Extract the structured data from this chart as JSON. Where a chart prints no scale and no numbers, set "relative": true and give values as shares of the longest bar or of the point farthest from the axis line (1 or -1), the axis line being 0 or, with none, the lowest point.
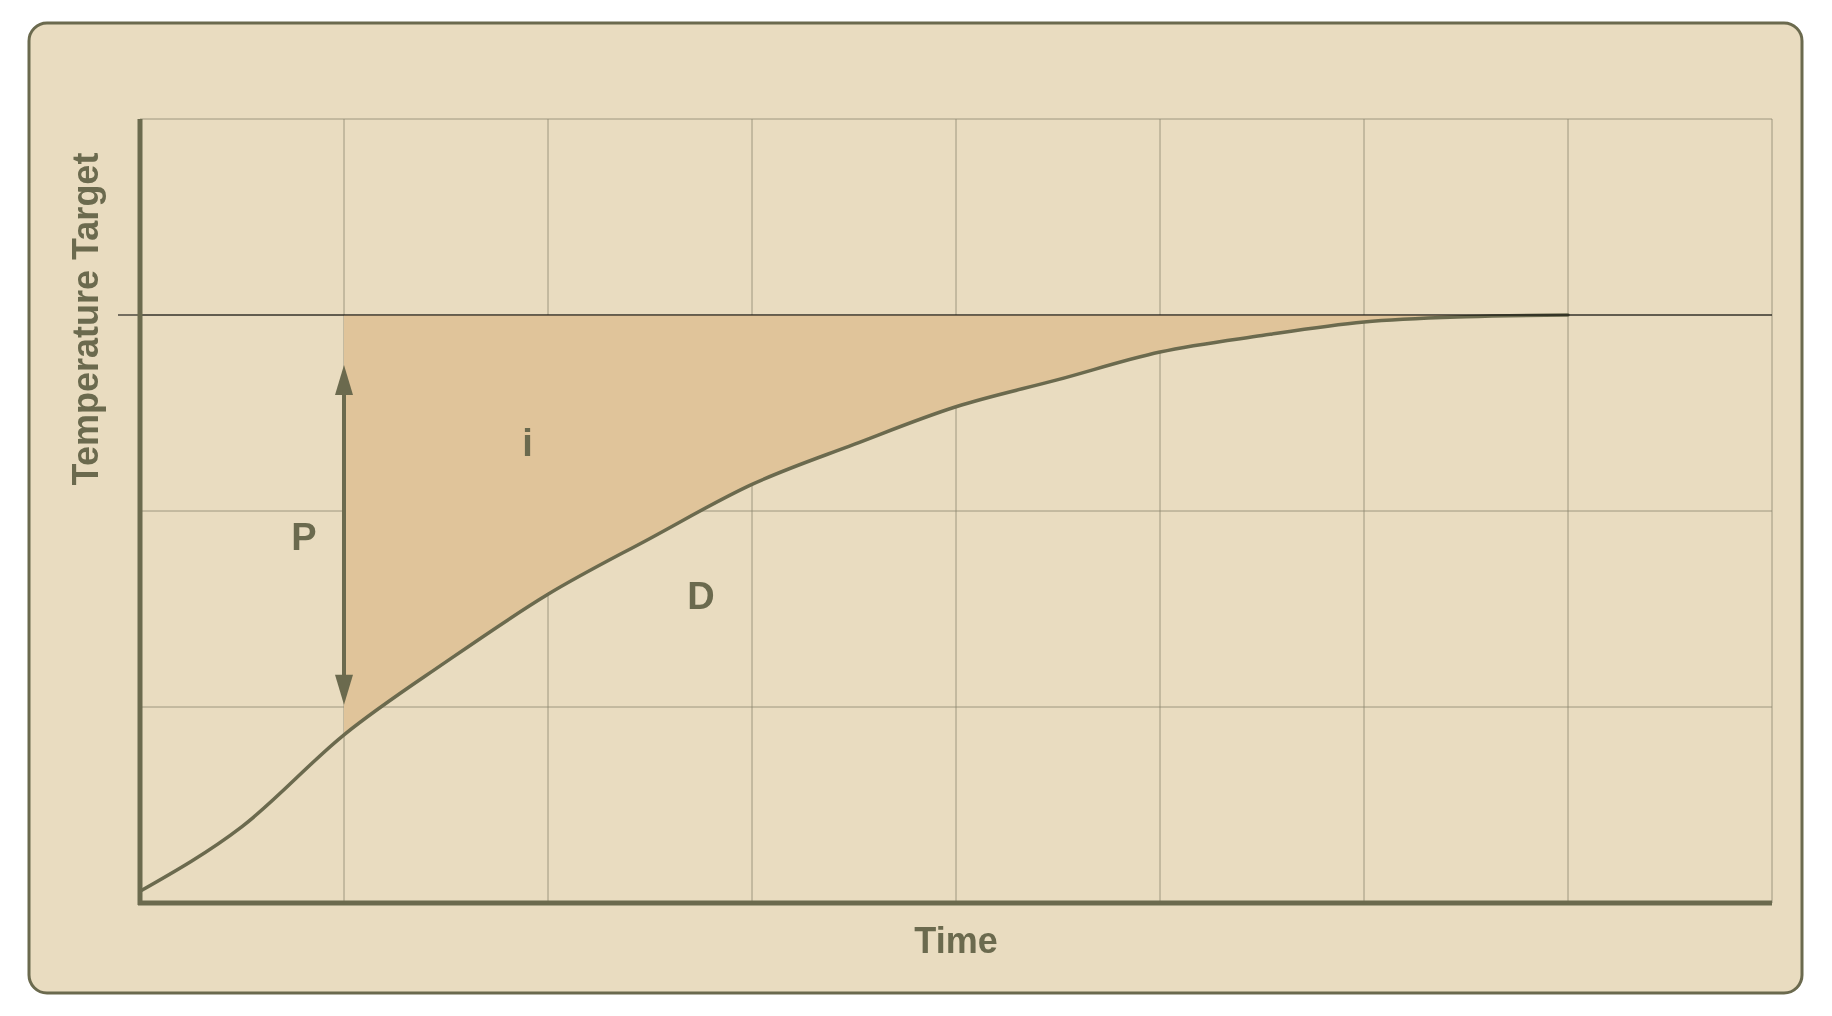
{
  "chart_data": {
    "type": "line",
    "relative": true,
    "xlabel": "Time",
    "ylabel": "Temperature Target",
    "grid": true,
    "marker": "none",
    "line_style": "solid",
    "categories": [
      null,
      null,
      null,
      null,
      null,
      null,
      null,
      null,
      null,
      null,
      null,
      null,
      null,
      null,
      null,
      null,
      null
    ],
    "series": [
      {
        "color": "#6b6a4e",
        "values": [
          0.02,
          0.13,
          0.286,
          0.41,
          0.525,
          0.62,
          0.712,
          0.78,
          0.844,
          0.89,
          0.937,
          0.965,
          0.988,
          0.997,
          1.0,
          null,
          null
        ],
        "lower": [
          null,
          null,
          0.286,
          0.41,
          0.525,
          0.62,
          0.712,
          0.78,
          0.844,
          0.89,
          0.937,
          0.965,
          0.988,
          0.997,
          1.0,
          null,
          null
        ],
        "upper": [
          null,
          null,
          1,
          1,
          1,
          1,
          1,
          1,
          1,
          1,
          1,
          1,
          1,
          1,
          1,
          null,
          null
        ]
      }
    ],
    "ref_lines": [
      {
        "axis": "y",
        "value": 1,
        "color": "#000000"
      }
    ],
    "annotations": [
      "P",
      "i",
      "D"
    ]
  }
}
